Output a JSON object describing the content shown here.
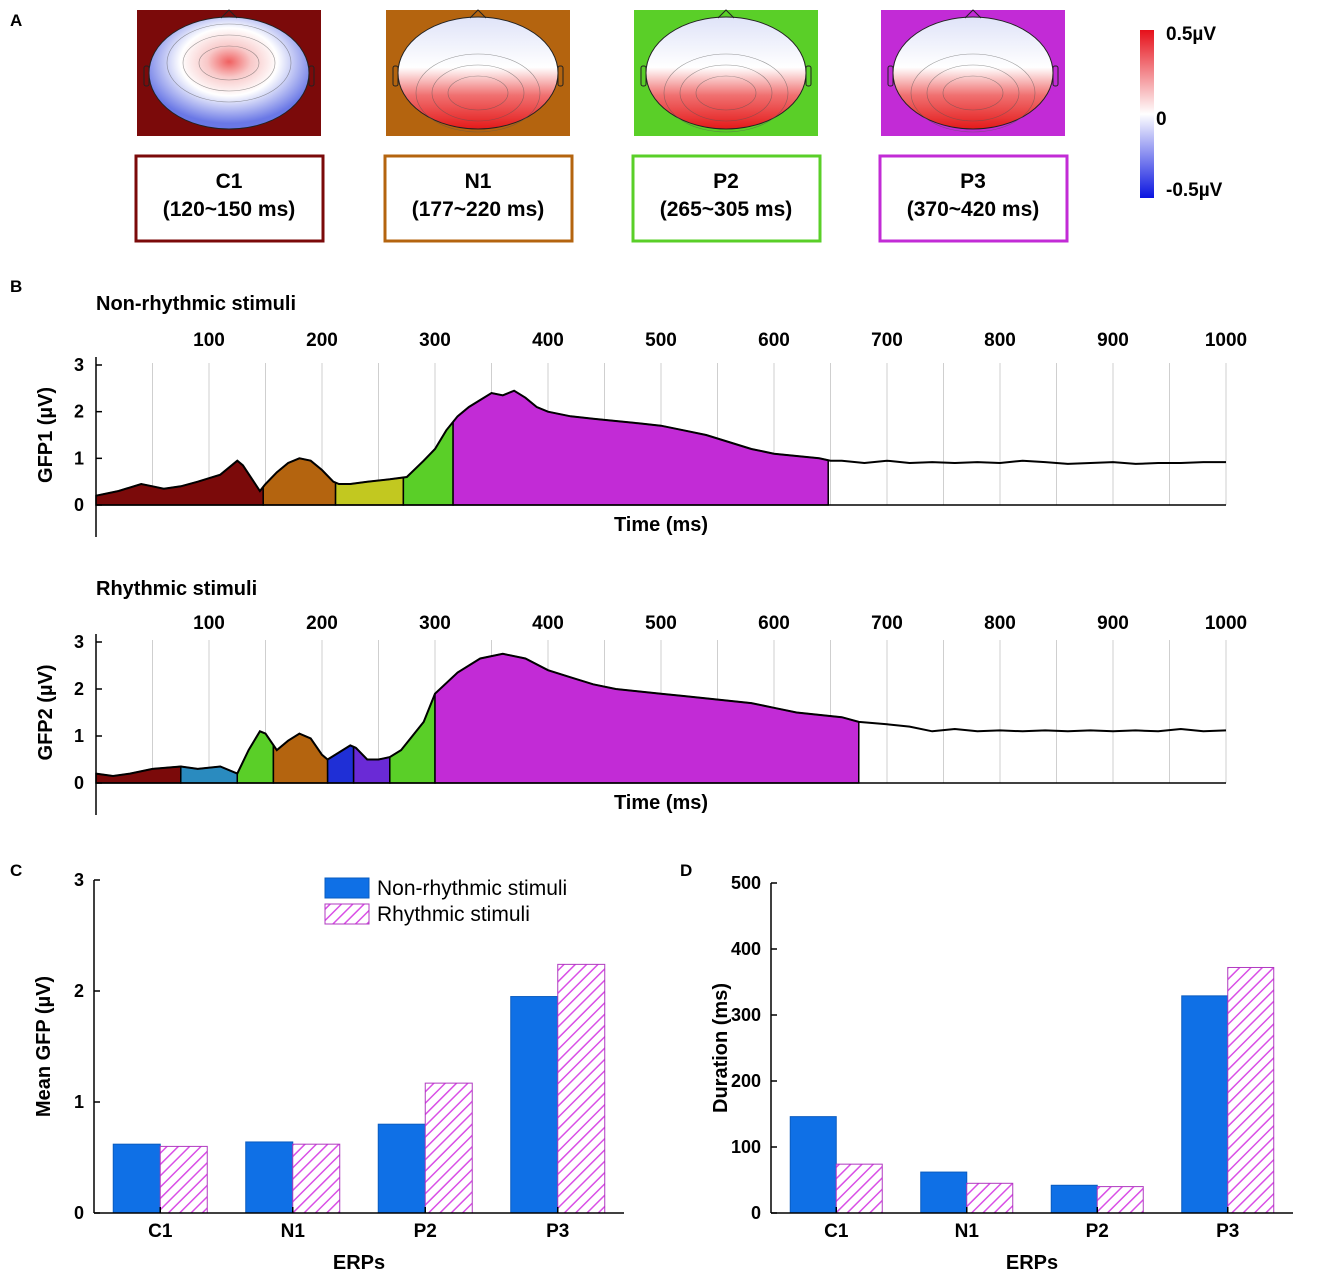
{
  "panel_labels": {
    "a": "A",
    "b": "B",
    "c": "C",
    "d": "D"
  },
  "colors": {
    "C1": "#7b0a0a",
    "N1": "#b4640f",
    "P2": "#5acf28",
    "P3": "#c22bd6",
    "olive": "#c2c820",
    "teal": "#2a8bbf",
    "blue": "#1f2fd6",
    "indigo": "#6a2ad6",
    "bar_non": "#0f70e6",
    "bar_rhy": "#d94fe6"
  },
  "topomaps": [
    {
      "name": "C1",
      "range": "(120~150 ms)",
      "color": "#7b0a0a"
    },
    {
      "name": "N1",
      "range": "(177~220 ms)",
      "color": "#b4640f"
    },
    {
      "name": "P2",
      "range": "(265~305 ms)",
      "color": "#5acf28"
    },
    {
      "name": "P3",
      "range": "(370~420 ms)",
      "color": "#c22bd6"
    }
  ],
  "colorbar": {
    "max": "0.5µV",
    "mid": "0",
    "min": "-0.5µV"
  },
  "chart_data": [
    {
      "type": "area",
      "title": "Non-rhythmic stimuli",
      "xlabel": "Time (ms)",
      "ylabel": "GFP1 (µV)",
      "xlim": [
        0,
        1000
      ],
      "ylim": [
        0,
        3
      ],
      "xticks": [
        100,
        200,
        300,
        400,
        500,
        600,
        700,
        800,
        900,
        1000
      ],
      "yticks": [
        0,
        1,
        2,
        3
      ],
      "x": [
        0,
        20,
        40,
        50,
        60,
        75,
        90,
        110,
        125,
        130,
        145,
        150,
        160,
        170,
        180,
        190,
        200,
        210,
        215,
        225,
        240,
        260,
        275,
        290,
        300,
        310,
        320,
        330,
        340,
        350,
        360,
        370,
        380,
        390,
        400,
        420,
        440,
        460,
        480,
        500,
        520,
        540,
        560,
        580,
        600,
        620,
        640,
        650,
        660,
        680,
        700,
        720,
        740,
        760,
        780,
        800,
        820,
        840,
        860,
        880,
        900,
        920,
        940,
        960,
        980,
        1000
      ],
      "values": [
        0.2,
        0.3,
        0.45,
        0.4,
        0.35,
        0.4,
        0.5,
        0.65,
        0.95,
        0.85,
        0.3,
        0.45,
        0.7,
        0.9,
        1.0,
        0.95,
        0.75,
        0.5,
        0.45,
        0.45,
        0.5,
        0.55,
        0.6,
        0.95,
        1.2,
        1.6,
        1.9,
        2.1,
        2.25,
        2.4,
        2.35,
        2.45,
        2.3,
        2.1,
        2.0,
        1.9,
        1.85,
        1.8,
        1.75,
        1.7,
        1.6,
        1.5,
        1.35,
        1.2,
        1.1,
        1.05,
        1.0,
        0.95,
        0.95,
        0.9,
        0.95,
        0.9,
        0.92,
        0.9,
        0.92,
        0.9,
        0.95,
        0.92,
        0.88,
        0.9,
        0.92,
        0.88,
        0.9,
        0.9,
        0.92,
        0.92
      ],
      "segments": [
        {
          "from": 0,
          "to": 148,
          "color": "#7b0a0a"
        },
        {
          "from": 148,
          "to": 212,
          "color": "#b4640f"
        },
        {
          "from": 212,
          "to": 272,
          "color": "#c2c820"
        },
        {
          "from": 272,
          "to": 316,
          "color": "#5acf28"
        },
        {
          "from": 316,
          "to": 648,
          "color": "#c22bd6"
        }
      ]
    },
    {
      "type": "area",
      "title": "Rhythmic stimuli",
      "xlabel": "Time (ms)",
      "ylabel": "GFP2 (µV)",
      "xlim": [
        0,
        1000
      ],
      "ylim": [
        0,
        3
      ],
      "xticks": [
        100,
        200,
        300,
        400,
        500,
        600,
        700,
        800,
        900,
        1000
      ],
      "yticks": [
        0,
        1,
        2,
        3
      ],
      "x": [
        0,
        15,
        30,
        50,
        75,
        90,
        110,
        125,
        135,
        145,
        150,
        160,
        170,
        180,
        190,
        200,
        205,
        215,
        225,
        230,
        240,
        250,
        260,
        270,
        280,
        290,
        300,
        320,
        340,
        360,
        380,
        400,
        420,
        440,
        460,
        480,
        500,
        520,
        540,
        560,
        580,
        600,
        620,
        640,
        660,
        675,
        700,
        720,
        740,
        760,
        780,
        800,
        820,
        840,
        860,
        880,
        900,
        920,
        940,
        960,
        980,
        1000
      ],
      "values": [
        0.2,
        0.15,
        0.2,
        0.3,
        0.35,
        0.3,
        0.35,
        0.2,
        0.7,
        1.1,
        1.05,
        0.7,
        0.9,
        1.05,
        0.95,
        0.6,
        0.5,
        0.65,
        0.8,
        0.75,
        0.5,
        0.5,
        0.55,
        0.7,
        1.0,
        1.3,
        1.9,
        2.35,
        2.65,
        2.75,
        2.65,
        2.4,
        2.25,
        2.1,
        2.0,
        1.95,
        1.9,
        1.85,
        1.8,
        1.75,
        1.7,
        1.6,
        1.5,
        1.45,
        1.4,
        1.3,
        1.25,
        1.2,
        1.1,
        1.15,
        1.1,
        1.12,
        1.1,
        1.12,
        1.1,
        1.12,
        1.1,
        1.12,
        1.1,
        1.15,
        1.1,
        1.12
      ],
      "segments": [
        {
          "from": 0,
          "to": 75,
          "color": "#7b0a0a"
        },
        {
          "from": 75,
          "to": 125,
          "color": "#2a8bbf"
        },
        {
          "from": 125,
          "to": 157,
          "color": "#5acf28"
        },
        {
          "from": 157,
          "to": 205,
          "color": "#b4640f"
        },
        {
          "from": 205,
          "to": 228,
          "color": "#1f2fd6"
        },
        {
          "from": 228,
          "to": 260,
          "color": "#6a2ad6"
        },
        {
          "from": 260,
          "to": 300,
          "color": "#5acf28"
        },
        {
          "from": 300,
          "to": 675,
          "color": "#c22bd6"
        }
      ]
    },
    {
      "type": "bar",
      "xlabel": "ERPs",
      "ylabel": "Mean GFP (µV)",
      "categories": [
        "C1",
        "N1",
        "P2",
        "P3"
      ],
      "ylim": [
        0,
        3
      ],
      "yticks": [
        0,
        1,
        2,
        3
      ],
      "series": [
        {
          "name": "Non-rhythmic stimuli",
          "values": [
            0.62,
            0.64,
            0.8,
            1.95
          ]
        },
        {
          "name": "Rhythmic stimuli",
          "values": [
            0.6,
            0.62,
            1.17,
            2.24
          ]
        }
      ]
    },
    {
      "type": "bar",
      "xlabel": "ERPs",
      "ylabel": "Duration (ms)",
      "categories": [
        "C1",
        "N1",
        "P2",
        "P3"
      ],
      "ylim": [
        0,
        500
      ],
      "yticks": [
        0,
        100,
        200,
        300,
        400,
        500
      ],
      "series": [
        {
          "name": "Non-rhythmic stimuli",
          "values": [
            146,
            62,
            42,
            329
          ]
        },
        {
          "name": "Rhythmic stimuli",
          "values": [
            74,
            45,
            40,
            372
          ]
        }
      ]
    }
  ]
}
